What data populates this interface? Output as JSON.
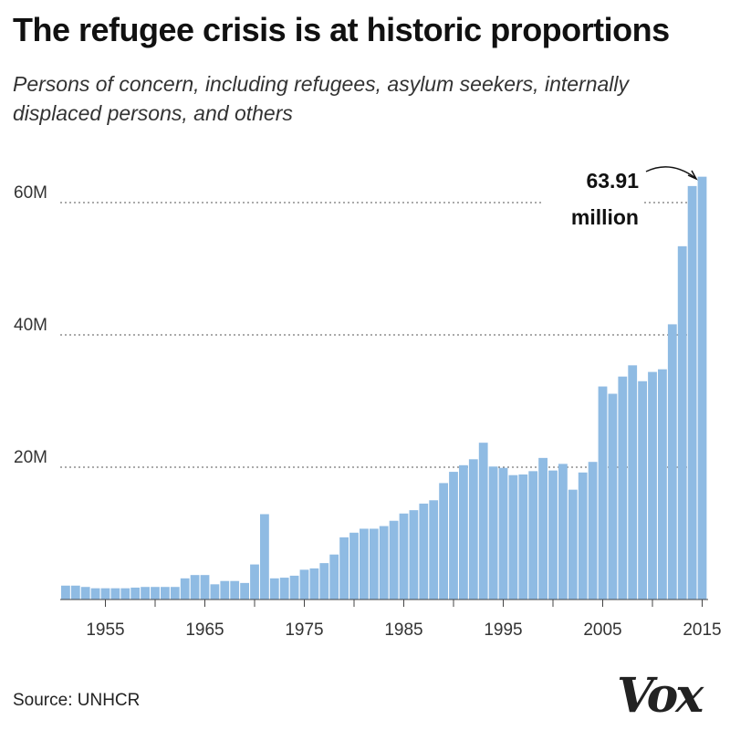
{
  "chart_data": {
    "type": "bar",
    "title": "The refugee crisis is at historic proportions",
    "subtitle": "Persons of concern, including refugees, asylum seekers, internally displaced persons, and others",
    "xlabel": "",
    "ylabel": "",
    "ylim": [
      0,
      60
    ],
    "y_unit": "millions",
    "y_ticks": [
      {
        "value": 20,
        "label": "20M"
      },
      {
        "value": 40,
        "label": "40M"
      },
      {
        "value": 60,
        "label": "60M"
      }
    ],
    "x_tick_labels": [
      "1955",
      "1965",
      "1975",
      "1985",
      "1995",
      "2005",
      "2015"
    ],
    "grid": "horizontal dotted",
    "color": "#8fbbe3",
    "categories": [
      1951,
      1952,
      1953,
      1954,
      1955,
      1956,
      1957,
      1958,
      1959,
      1960,
      1961,
      1962,
      1963,
      1964,
      1965,
      1966,
      1967,
      1968,
      1969,
      1970,
      1971,
      1972,
      1973,
      1974,
      1975,
      1976,
      1977,
      1978,
      1979,
      1980,
      1981,
      1982,
      1983,
      1984,
      1985,
      1986,
      1987,
      1988,
      1989,
      1990,
      1991,
      1992,
      1993,
      1994,
      1995,
      1996,
      1997,
      1998,
      1999,
      2000,
      2001,
      2002,
      2003,
      2004,
      2005,
      2006,
      2007,
      2008,
      2009,
      2010,
      2011,
      2012,
      2013,
      2014,
      2015
    ],
    "values": [
      2.1,
      2.1,
      1.9,
      1.7,
      1.7,
      1.7,
      1.7,
      1.8,
      1.9,
      1.9,
      1.9,
      1.9,
      3.2,
      3.7,
      3.7,
      2.3,
      2.8,
      2.8,
      2.5,
      5.3,
      12.9,
      3.2,
      3.3,
      3.6,
      4.5,
      4.7,
      5.5,
      6.8,
      9.4,
      10.1,
      10.7,
      10.7,
      11.1,
      11.9,
      13.0,
      13.5,
      14.5,
      15.0,
      17.6,
      19.3,
      20.3,
      21.2,
      23.7,
      20.1,
      19.9,
      18.8,
      18.9,
      19.4,
      21.4,
      19.5,
      20.5,
      16.6,
      19.2,
      20.8,
      32.2,
      31.1,
      33.7,
      35.4,
      33.0,
      34.4,
      34.8,
      41.6,
      53.4,
      62.5,
      63.91
    ],
    "annotation": {
      "value_line1": "63.91",
      "value_line2": "million"
    },
    "source": "Source: UNHCR",
    "logo": "Vox"
  }
}
